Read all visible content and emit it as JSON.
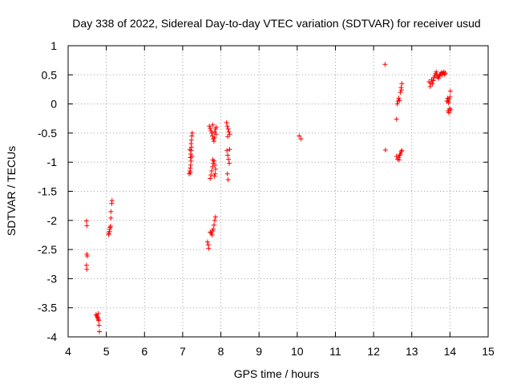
{
  "chart_data": {
    "type": "scatter",
    "title": "Day 338 of 2022, Sidereal Day-to-day VTEC variation (SDTVAR) for receiver usud",
    "xlabel": "GPS time / hours",
    "ylabel": "SDTVAR / TECUs",
    "xlim": [
      4,
      15
    ],
    "ylim": [
      -4,
      1
    ],
    "xticks": [
      4,
      5,
      6,
      7,
      8,
      9,
      10,
      11,
      12,
      13,
      14,
      15
    ],
    "yticks": [
      1,
      0.5,
      0,
      -0.5,
      -1,
      -1.5,
      -2,
      -2.5,
      -3,
      -3.5,
      -4
    ],
    "xtick_labels": [
      "4",
      "5",
      "6",
      "7",
      "8",
      "9",
      "10",
      "11",
      "12",
      "13",
      "14",
      "15"
    ],
    "ytick_labels": [
      "1",
      "0.5",
      "0",
      "-0.5",
      "-1",
      "-1.5",
      "-2",
      "-2.5",
      "-3",
      "-3.5",
      "-4"
    ],
    "grid": true,
    "marker": "+",
    "color": "#ff0000",
    "series": [
      {
        "name": "SDTVAR",
        "points": [
          [
            4.48,
            -2.01
          ],
          [
            4.49,
            -2.09
          ],
          [
            4.49,
            -2.58
          ],
          [
            4.5,
            -2.61
          ],
          [
            4.48,
            -2.77
          ],
          [
            4.49,
            -2.84
          ],
          [
            4.73,
            -3.62
          ],
          [
            4.75,
            -3.64
          ],
          [
            4.77,
            -3.66
          ],
          [
            4.78,
            -3.68
          ],
          [
            4.79,
            -3.7
          ],
          [
            4.8,
            -3.72
          ],
          [
            4.79,
            -3.6
          ],
          [
            4.81,
            -3.8
          ],
          [
            4.82,
            -3.91
          ],
          [
            5.06,
            -2.24
          ],
          [
            5.08,
            -2.19
          ],
          [
            5.09,
            -2.15
          ],
          [
            5.1,
            -2.12
          ],
          [
            5.11,
            -2.1
          ],
          [
            5.12,
            -1.96
          ],
          [
            5.12,
            -1.85
          ],
          [
            5.14,
            -1.71
          ],
          [
            5.15,
            -1.66
          ],
          [
            5.07,
            -2.22
          ],
          [
            7.17,
            -1.2
          ],
          [
            7.19,
            -1.15
          ],
          [
            7.2,
            -1.1
          ],
          [
            7.21,
            -1.05
          ],
          [
            7.22,
            -0.98
          ],
          [
            7.2,
            -0.92
          ],
          [
            7.21,
            -0.86
          ],
          [
            7.22,
            -0.8
          ],
          [
            7.23,
            -0.74
          ],
          [
            7.22,
            -0.68
          ],
          [
            7.23,
            -0.62
          ],
          [
            7.24,
            -0.55
          ],
          [
            7.25,
            -0.5
          ],
          [
            7.2,
            -1.18
          ],
          [
            7.19,
            -0.78
          ],
          [
            7.24,
            -0.9
          ],
          [
            7.65,
            -2.37
          ],
          [
            7.67,
            -2.42
          ],
          [
            7.68,
            -2.48
          ],
          [
            7.72,
            -2.2
          ],
          [
            7.75,
            -2.22
          ],
          [
            7.78,
            -2.18
          ],
          [
            7.8,
            -2.15
          ],
          [
            7.82,
            -2.08
          ],
          [
            7.84,
            -2.0
          ],
          [
            7.86,
            -1.94
          ],
          [
            7.77,
            -2.25
          ],
          [
            7.7,
            -0.38
          ],
          [
            7.72,
            -0.42
          ],
          [
            7.74,
            -0.46
          ],
          [
            7.76,
            -0.5
          ],
          [
            7.78,
            -0.55
          ],
          [
            7.8,
            -0.6
          ],
          [
            7.82,
            -0.64
          ],
          [
            7.84,
            -0.48
          ],
          [
            7.86,
            -0.43
          ],
          [
            7.88,
            -0.4
          ],
          [
            7.79,
            -0.36
          ],
          [
            7.83,
            -0.58
          ],
          [
            7.87,
            -0.52
          ],
          [
            7.72,
            -1.28
          ],
          [
            7.74,
            -1.22
          ],
          [
            7.76,
            -1.15
          ],
          [
            7.78,
            -1.08
          ],
          [
            7.8,
            -1.02
          ],
          [
            7.82,
            -0.98
          ],
          [
            7.84,
            -1.05
          ],
          [
            7.86,
            -1.12
          ],
          [
            7.85,
            -1.2
          ],
          [
            7.79,
            -0.96
          ],
          [
            7.83,
            -1.24
          ],
          [
            8.15,
            -0.32
          ],
          [
            8.17,
            -0.38
          ],
          [
            8.19,
            -0.43
          ],
          [
            8.21,
            -0.48
          ],
          [
            8.23,
            -0.52
          ],
          [
            8.18,
            -0.56
          ],
          [
            8.16,
            -0.8
          ],
          [
            8.18,
            -0.88
          ],
          [
            8.2,
            -0.95
          ],
          [
            8.22,
            -1.02
          ],
          [
            8.17,
            -1.2
          ],
          [
            8.19,
            -1.3
          ],
          [
            8.23,
            -0.78
          ],
          [
            10.05,
            -0.55
          ],
          [
            10.1,
            -0.6
          ],
          [
            12.3,
            0.68
          ],
          [
            12.31,
            -0.79
          ],
          [
            12.6,
            -0.26
          ],
          [
            12.62,
            0.0
          ],
          [
            12.64,
            0.05
          ],
          [
            12.66,
            0.1
          ],
          [
            12.68,
            0.06
          ],
          [
            12.7,
            0.2
          ],
          [
            12.72,
            0.28
          ],
          [
            12.74,
            0.35
          ],
          [
            12.73,
            0.24
          ],
          [
            12.6,
            -0.9
          ],
          [
            12.63,
            -0.95
          ],
          [
            12.66,
            -0.92
          ],
          [
            12.68,
            -0.88
          ],
          [
            12.7,
            -0.86
          ],
          [
            12.72,
            -0.82
          ],
          [
            12.74,
            -0.8
          ],
          [
            12.67,
            -0.96
          ],
          [
            13.45,
            0.38
          ],
          [
            13.48,
            0.3
          ],
          [
            13.5,
            0.36
          ],
          [
            13.52,
            0.42
          ],
          [
            13.54,
            0.35
          ],
          [
            13.56,
            0.4
          ],
          [
            13.58,
            0.45
          ],
          [
            13.6,
            0.48
          ],
          [
            13.62,
            0.52
          ],
          [
            13.64,
            0.55
          ],
          [
            13.66,
            0.5
          ],
          [
            13.68,
            0.46
          ],
          [
            13.7,
            0.44
          ],
          [
            13.72,
            0.48
          ],
          [
            13.74,
            0.5
          ],
          [
            13.76,
            0.52
          ],
          [
            13.78,
            0.54
          ],
          [
            13.8,
            0.5
          ],
          [
            13.82,
            0.53
          ],
          [
            13.84,
            0.55
          ],
          [
            13.86,
            0.51
          ],
          [
            13.88,
            0.53
          ],
          [
            13.92,
            0.05
          ],
          [
            13.94,
            0.1
          ],
          [
            13.96,
            0.02
          ],
          [
            13.98,
            0.08
          ],
          [
            14.0,
            0.12
          ],
          [
            14.01,
            0.22
          ],
          [
            13.95,
            -0.12
          ],
          [
            13.97,
            -0.15
          ],
          [
            13.99,
            -0.08
          ],
          [
            14.02,
            -0.1
          ],
          [
            13.96,
            0.04
          ]
        ]
      }
    ]
  }
}
